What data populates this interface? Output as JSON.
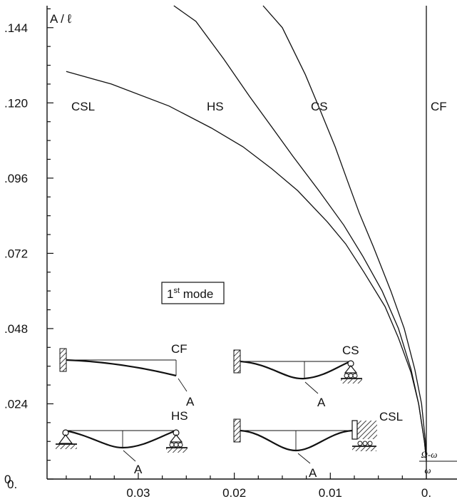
{
  "chart_data": {
    "type": "line",
    "title": "",
    "xlabel_num": "Ω-ω",
    "xlabel_den": "ω",
    "ylabel": "A / ℓ",
    "x_reversed": true,
    "xlim": [
      0,
      0.0395
    ],
    "ylim": [
      0,
      0.151
    ],
    "x_ticks": [
      0.03,
      0.02,
      0.01,
      0
    ],
    "x_tick_labels": [
      "0.03",
      "0.02",
      "0.01",
      "0."
    ],
    "y_ticks": [
      0,
      0.024,
      0.048,
      0.072,
      0.096,
      0.12,
      0.144
    ],
    "y_tick_labels": [
      "0.",
      ".024",
      ".048",
      ".072",
      ".096",
      ".120",
      ".144"
    ],
    "grid": false,
    "series": [
      {
        "name": "CSL",
        "x": [
          0,
          0.0002,
          0.0008,
          0.0016,
          0.0029,
          0.0043,
          0.0065,
          0.0084,
          0.0103,
          0.0134,
          0.0161,
          0.0191,
          0.0224,
          0.0268,
          0.0328,
          0.0375
        ],
        "y": [
          0.006,
          0.012,
          0.024,
          0.034,
          0.045,
          0.055,
          0.066,
          0.075,
          0.082,
          0.092,
          0.099,
          0.106,
          0.112,
          0.119,
          0.126,
          0.13
        ]
      },
      {
        "name": "HS",
        "x": [
          0,
          0.0002,
          0.0008,
          0.0016,
          0.0029,
          0.0046,
          0.0066,
          0.0086,
          0.0112,
          0.0139,
          0.0165,
          0.0184,
          0.0211,
          0.024,
          0.0263
        ],
        "y": [
          0.006,
          0.012,
          0.024,
          0.035,
          0.048,
          0.06,
          0.071,
          0.081,
          0.092,
          0.103,
          0.114,
          0.122,
          0.134,
          0.146,
          0.151
        ]
      },
      {
        "name": "CS",
        "x": [
          0,
          0.0001,
          0.0005,
          0.0012,
          0.0023,
          0.0037,
          0.0055,
          0.007,
          0.0082,
          0.0095,
          0.0111,
          0.0126,
          0.015,
          0.017
        ],
        "y": [
          0.006,
          0.012,
          0.024,
          0.035,
          0.048,
          0.06,
          0.074,
          0.085,
          0.095,
          0.106,
          0.118,
          0.129,
          0.144,
          0.151
        ]
      },
      {
        "name": "CF",
        "x": [
          0,
          0
        ],
        "y": [
          0,
          0.151
        ]
      }
    ],
    "annotations": {
      "mode_label": "1",
      "mode_sup": "st",
      "mode_suffix": " mode",
      "point_label": "A",
      "inset_cf": "CF",
      "inset_cs": "CS",
      "inset_hs": "HS",
      "inset_csl": "CSL"
    }
  }
}
